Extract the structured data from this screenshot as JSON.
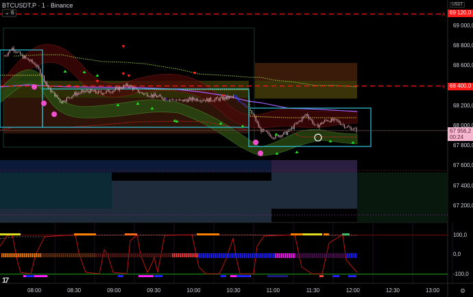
{
  "header": {
    "symbol_title": "BTCUSDT.P · 1 · Binance",
    "indicators_toggle": "6",
    "currency": "USDT"
  },
  "price_axis": {
    "ticks": [
      "69 000,0",
      "68 800,0",
      "68 600,0",
      "68 200,0",
      "68 000,0",
      "67 800,0",
      "67 600,0",
      "67 400,0",
      "67 200,0"
    ],
    "tick_values": [
      69000,
      68800,
      68600,
      68200,
      68000,
      67800,
      67600,
      67400,
      67200
    ],
    "alert_lines": [
      {
        "label": "69 120,0",
        "value": 69120,
        "marker": "Λ",
        "color": "#ff1a1a"
      },
      {
        "label": "68 400,0",
        "value": 68400,
        "marker": "e",
        "color": "#ff1a1a"
      }
    ],
    "current_price": {
      "label": "67 956,2",
      "value": 67956.2,
      "countdown": "00:24",
      "color": "#f7b6cf"
    }
  },
  "oscillator_axis": {
    "ticks": [
      "100,0",
      "0,0",
      "-100,0"
    ],
    "tick_values": [
      100,
      0,
      -100
    ]
  },
  "time_axis": {
    "ticks": [
      "08:00",
      "08:30",
      "09:00",
      "09:30",
      "10:00",
      "10:30",
      "11:00",
      "11:30",
      "12:00",
      "12:30",
      "13:00"
    ]
  },
  "chart_data": {
    "type": "candlestick",
    "interval": "1 minute",
    "price_path": [
      [
        "07:37",
        68700
      ],
      [
        "07:43",
        68780
      ],
      [
        "07:50",
        68700
      ],
      [
        "08:00",
        68620
      ],
      [
        "08:05",
        68520
      ],
      [
        "08:10",
        68380
      ],
      [
        "08:20",
        68240
      ],
      [
        "08:30",
        68320
      ],
      [
        "08:40",
        68350
      ],
      [
        "08:50",
        68330
      ],
      [
        "09:00",
        68360
      ],
      [
        "09:10",
        68410
      ],
      [
        "09:20",
        68330
      ],
      [
        "09:30",
        68300
      ],
      [
        "09:40",
        68270
      ],
      [
        "09:50",
        68250
      ],
      [
        "10:00",
        68270
      ],
      [
        "10:10",
        68260
      ],
      [
        "10:20",
        68270
      ],
      [
        "10:30",
        68290
      ],
      [
        "10:38",
        68220
      ],
      [
        "10:45",
        68100
      ],
      [
        "10:50",
        67960
      ],
      [
        "11:00",
        67890
      ],
      [
        "11:10",
        67930
      ],
      [
        "11:18",
        68030
      ],
      [
        "11:25",
        68120
      ],
      [
        "11:32",
        67990
      ],
      [
        "11:40",
        68060
      ],
      [
        "11:48",
        68050
      ],
      [
        "11:55",
        67990
      ],
      [
        "12:03",
        67956.2
      ]
    ],
    "colors": {
      "candles": "#c9a0a8",
      "accent_bear": "#3344ff",
      "alert": "#ff1a1a",
      "box": "#2ec7e0"
    }
  }
}
